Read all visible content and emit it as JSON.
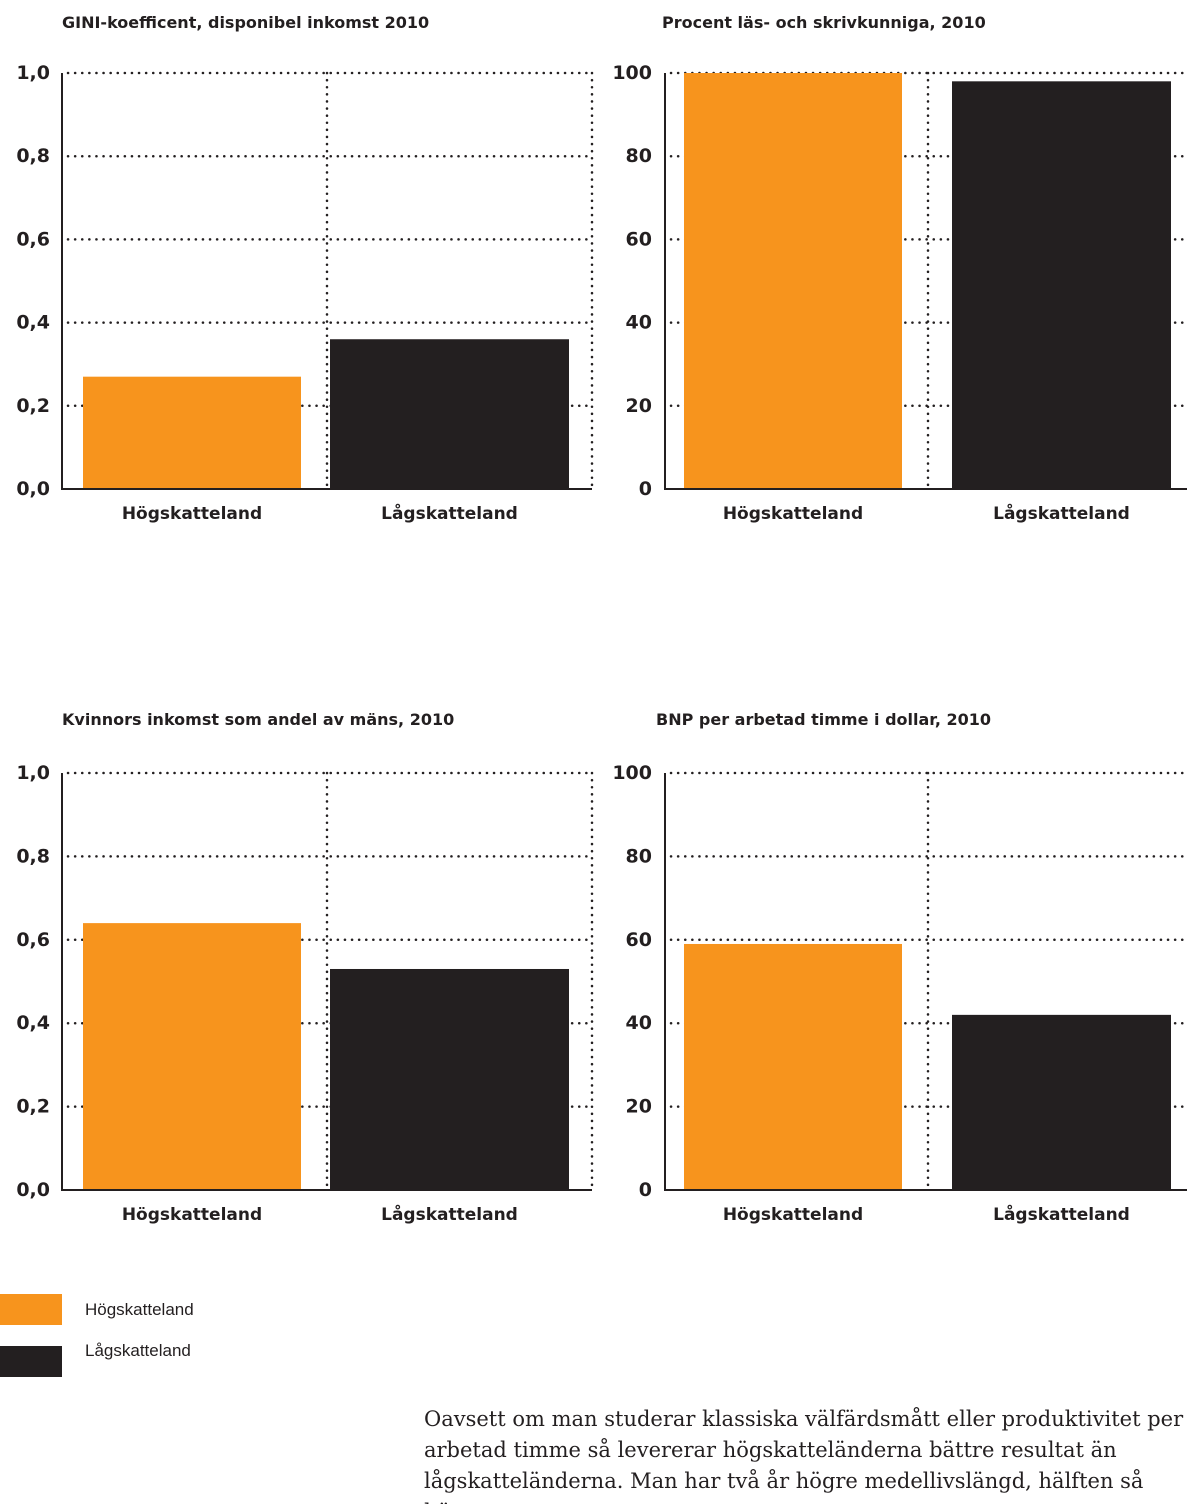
{
  "colors": {
    "high_tax": "#f7941d",
    "low_tax": "#231f20",
    "text": "#231f20"
  },
  "chart_data": [
    {
      "type": "bar",
      "title": "GINI-koefficent, disponibel inkomst 2010",
      "categories": [
        "Högskatteland",
        "Lågskatteland"
      ],
      "values": [
        0.27,
        0.36
      ],
      "ylim": [
        0,
        1
      ],
      "yticks": [
        0,
        0.2,
        0.4,
        0.6,
        0.8,
        1
      ],
      "ytick_labels": [
        "0,0",
        "0,2",
        "0,4",
        "0,6",
        "0,8",
        "1,0"
      ],
      "grid": "dotted",
      "xlabel": "",
      "ylabel": ""
    },
    {
      "type": "bar",
      "title": "Procent läs- och skrivkunniga, 2010",
      "categories": [
        "Högskatteland",
        "Lågskatteland"
      ],
      "values": [
        100,
        98
      ],
      "ylim": [
        0,
        100
      ],
      "yticks": [
        0,
        20,
        40,
        60,
        80,
        100
      ],
      "ytick_labels": [
        "0",
        "20",
        "40",
        "60",
        "80",
        "100"
      ],
      "grid": "dotted",
      "xlabel": "",
      "ylabel": ""
    },
    {
      "type": "bar",
      "title": "Kvinnors inkomst som andel av mäns, 2010",
      "categories": [
        "Högskatteland",
        "Lågskatteland"
      ],
      "values": [
        0.64,
        0.53
      ],
      "ylim": [
        0,
        1
      ],
      "yticks": [
        0,
        0.2,
        0.4,
        0.6,
        0.8,
        1
      ],
      "ytick_labels": [
        "0,0",
        "0,2",
        "0,4",
        "0,6",
        "0,8",
        "1,0"
      ],
      "grid": "dotted",
      "xlabel": "",
      "ylabel": ""
    },
    {
      "type": "bar",
      "title": "BNP per arbetad timme i dollar, 2010",
      "categories": [
        "Högskatteland",
        "Lågskatteland"
      ],
      "values": [
        59,
        42
      ],
      "ylim": [
        0,
        100
      ],
      "yticks": [
        0,
        20,
        40,
        60,
        80,
        100
      ],
      "ytick_labels": [
        "0",
        "20",
        "40",
        "60",
        "80",
        "100"
      ],
      "grid": "dotted",
      "xlabel": "",
      "ylabel": ""
    }
  ],
  "legend": [
    {
      "label": "Högskatteland",
      "color": "#f7941d"
    },
    {
      "label": "Lågskatteland",
      "color": "#231f20"
    }
  ],
  "body_text": "Oavsett om man studerar klassiska välfärdsmått eller produktivitet per arbetad timme så levererar högskatteländerna bättre resultat än lågskatteländerna. Man har två år högre medellivslängd, hälften så hög"
}
